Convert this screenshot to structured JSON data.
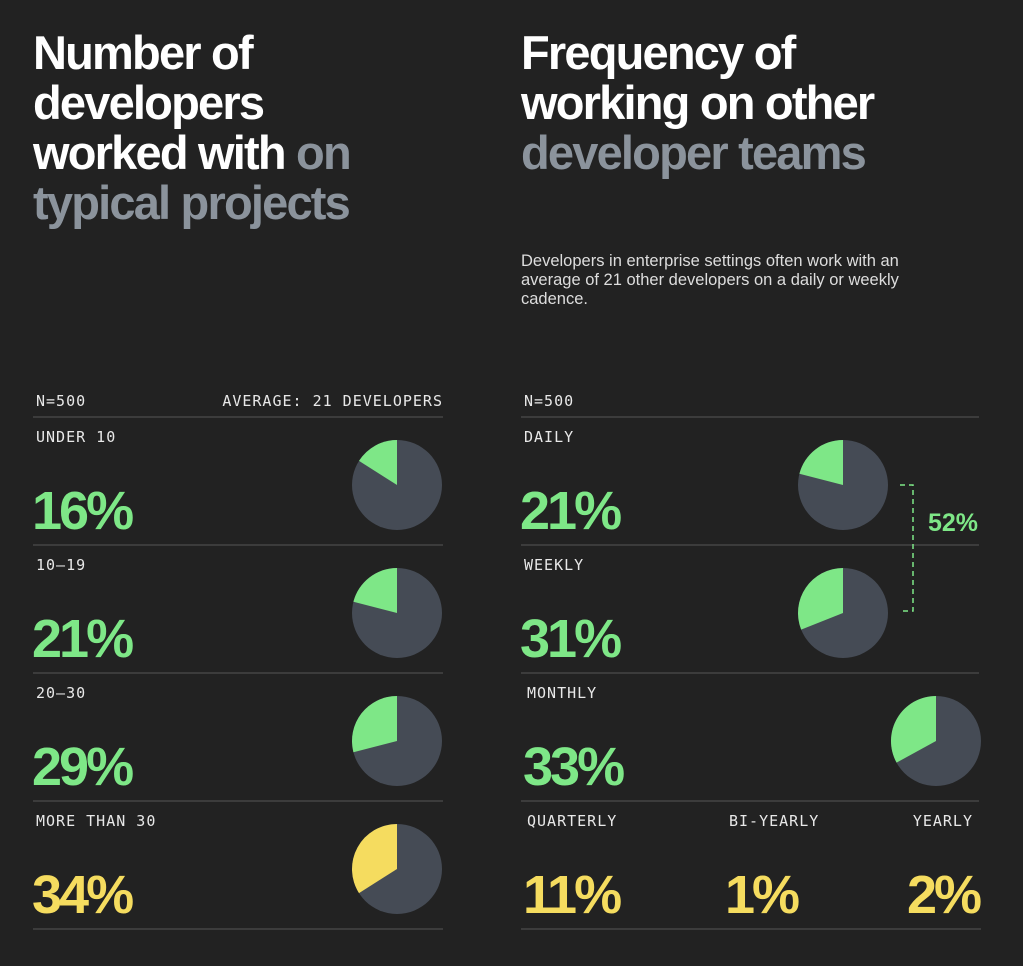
{
  "chart_data": [
    {
      "type": "pie",
      "title": "Number of developers worked with",
      "title_muted": "on typical projects",
      "sample_label": "N=500",
      "average_label": "AVERAGE: 21 DEVELOPERS",
      "categories": [
        "UNDER 10",
        "10–19",
        "20–30",
        "MORE THAN 30"
      ],
      "values": [
        16,
        21,
        29,
        34
      ],
      "value_labels": [
        "16%",
        "21%",
        "29%",
        "34%"
      ],
      "colors": [
        "#7ee787",
        "#7ee787",
        "#7ee787",
        "#f5dc5f"
      ],
      "rest_color": "#454b55"
    },
    {
      "type": "pie",
      "title": "Frequency of working on other",
      "title_muted": "developer teams",
      "subtitle": "Developers in enterprise settings often work with an average of 21 other developers on a daily or weekly cadence.",
      "sample_label": "N=500",
      "categories": [
        "DAILY",
        "WEEKLY",
        "MONTHLY",
        "QUARTERLY",
        "BI-YEARLY",
        "YEARLY"
      ],
      "values": [
        21,
        31,
        33,
        11,
        1,
        2
      ],
      "value_labels": [
        "21%",
        "31%",
        "33%",
        "11%",
        "1%",
        "2%"
      ],
      "colors": [
        "#7ee787",
        "#7ee787",
        "#7ee787",
        "#f5dc5f",
        "#f5dc5f",
        "#f5dc5f"
      ],
      "pie_shown": [
        true,
        true,
        true,
        false,
        false,
        false
      ],
      "rest_color": "#454b55",
      "bracket": {
        "value": 52,
        "label": "52%",
        "color": "#7ee787"
      }
    }
  ]
}
